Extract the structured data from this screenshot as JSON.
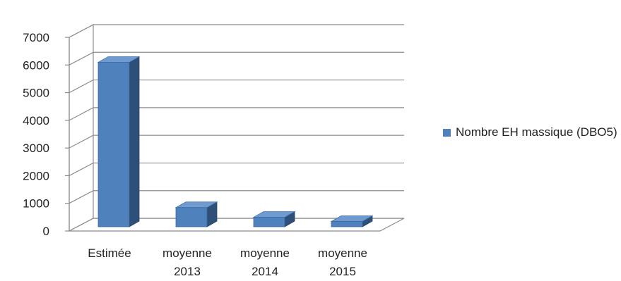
{
  "chart_data": {
    "type": "bar",
    "title": "",
    "xlabel": "",
    "ylabel": "",
    "categories": [
      "Estimée",
      "moyenne 2013",
      "moyenne 2014",
      "moyenne 2015"
    ],
    "category_lines": [
      [
        "Estimée"
      ],
      [
        "moyenne",
        "2013"
      ],
      [
        "moyenne",
        "2014"
      ],
      [
        "moyenne",
        "2015"
      ]
    ],
    "series": [
      {
        "name": "Nombre EH massique (DBO5)",
        "values": [
          6250,
          1000,
          650,
          500
        ]
      }
    ],
    "ylim": [
      0,
      7000
    ],
    "yticks": [
      0,
      1000,
      2000,
      3000,
      4000,
      5000,
      6000,
      7000
    ],
    "grid": true,
    "legend_position": "right",
    "three_d": true,
    "colors": {
      "bar_front": "#4f81bd",
      "bar_side": "#2e4f77",
      "bar_top": "#6f9bd1",
      "gridline": "#8c8c8c",
      "axis_text": "#222222"
    }
  }
}
